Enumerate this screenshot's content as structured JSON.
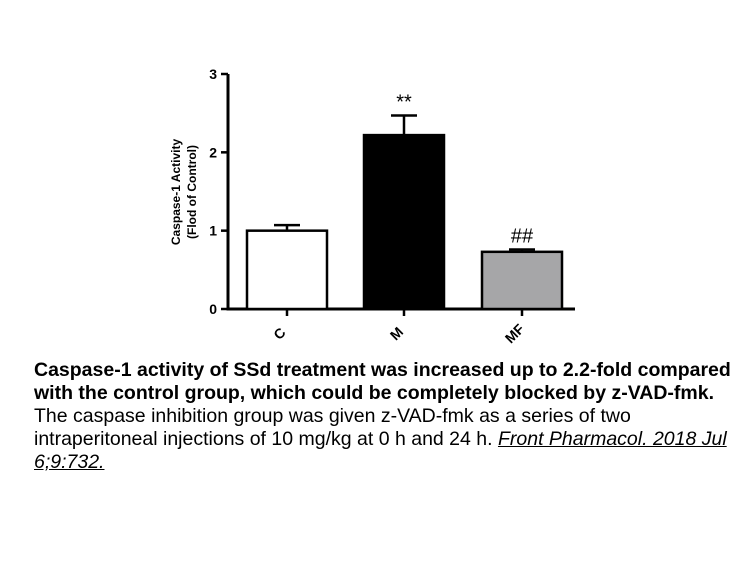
{
  "chart_data": {
    "type": "bar",
    "categories": [
      "C",
      "M",
      "MF"
    ],
    "values": [
      1.0,
      2.22,
      0.73
    ],
    "errors": [
      0.07,
      0.25,
      0.03
    ],
    "annotations": [
      "",
      "**",
      "##"
    ],
    "bar_colors": [
      "#ffffff",
      "#000000",
      "#a6a6a8"
    ],
    "ylabel_line1": "Caspase-1 Activity",
    "ylabel_line2": "(Flod of Control)",
    "ylim": [
      0,
      3
    ],
    "yticks": [
      0,
      1,
      2,
      3
    ],
    "grid": false
  },
  "caption": {
    "title": "Caspase-1 activity of SSd treatment was increased up to 2.2-fold compared with the control group, which could be completely blocked by z-VAD-fmk.",
    "body": "The caspase inhibition group was given z-VAD-fmk as a series of two intraperitoneal injections of 10 mg/kg at 0 h and 24 h. ",
    "citation": "Front Pharmacol. 2018 Jul 6;9:732."
  }
}
